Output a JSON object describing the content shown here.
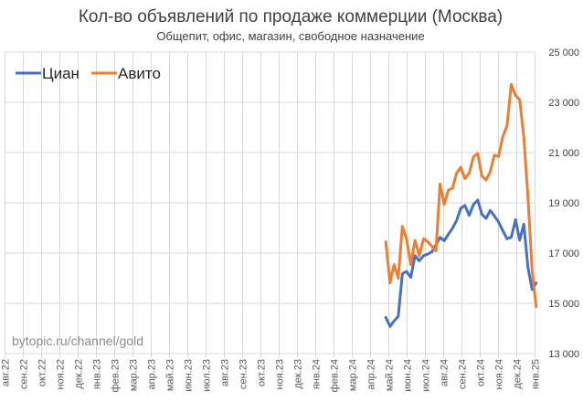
{
  "chart_data": {
    "type": "line",
    "title": "Кол-во объявлений по продаже коммерции (Москва)",
    "subtitle": "Общепит, офис, магазин, свободное назначение",
    "watermark": "bytopic.ru/channel/gold",
    "xlabel": "",
    "ylabel": "",
    "ylim": [
      13000,
      25000
    ],
    "y_ticks": [
      "13 000",
      "15 000",
      "17 000",
      "19 000",
      "21 000",
      "23 000",
      "25 000"
    ],
    "y_axis_side": "right",
    "x_ticks": [
      "авг.22",
      "сен.22",
      "окт.22",
      "ноя.22",
      "дек.22",
      "янв.23",
      "фев.23",
      "мар.23",
      "апр.23",
      "май.23",
      "июн.23",
      "июл.23",
      "авг.23",
      "сен.23",
      "окт.23",
      "ноя.23",
      "дек.23",
      "янв.24",
      "фев.24",
      "мар.24",
      "апр.24",
      "май.24",
      "июн.24",
      "июл.24",
      "авг.24",
      "сен.24",
      "окт.24",
      "ноя.24",
      "дек.24",
      "янв.25"
    ],
    "grid": true,
    "legend": "top-left",
    "x_start": "2024-04-26",
    "x_step_days": 7,
    "series": [
      {
        "name": "Циан",
        "color": "#4472c4",
        "values": [
          14440,
          14080,
          14300,
          14480,
          16180,
          16270,
          16030,
          16900,
          16690,
          16900,
          16960,
          17050,
          17330,
          17630,
          17490,
          17750,
          17990,
          18300,
          18780,
          18900,
          18500,
          18940,
          19110,
          18540,
          18380,
          18700,
          18480,
          18240,
          17900,
          17570,
          17630,
          18330,
          17510,
          18150,
          16420,
          15550,
          15810
        ]
      },
      {
        "name": "Авито",
        "color": "#ed7d31",
        "values": [
          17450,
          15810,
          16540,
          15990,
          18060,
          17570,
          16540,
          17510,
          16900,
          17570,
          17450,
          17270,
          17090,
          19750,
          18940,
          19510,
          19590,
          20180,
          20420,
          19960,
          20180,
          20840,
          20960,
          20060,
          19910,
          20240,
          20900,
          20840,
          21630,
          22060,
          23720,
          23270,
          23110,
          21630,
          19210,
          16300,
          14870
        ]
      }
    ]
  }
}
